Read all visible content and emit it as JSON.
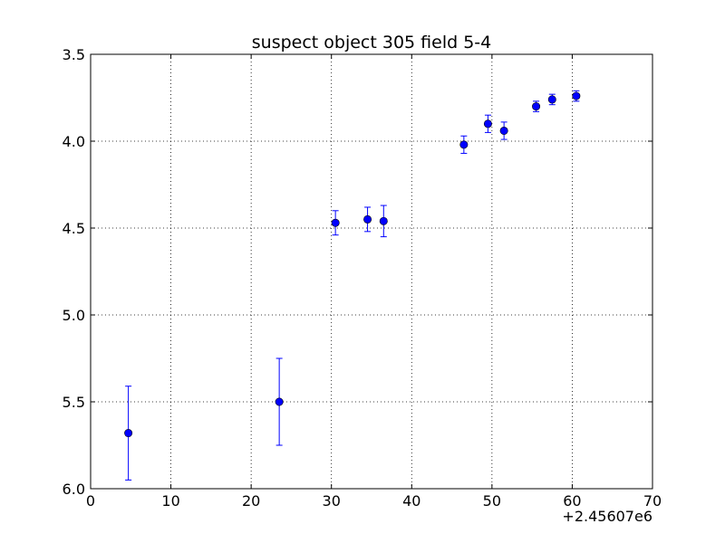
{
  "chart_data": {
    "type": "scatter",
    "title": "suspect object 305 field 5-4",
    "xlabel": "",
    "ylabel": "",
    "x_offset_label": "+2.45607e6",
    "xlim": [
      0,
      70
    ],
    "ylim": [
      3.5,
      6.0
    ],
    "y_inverted": true,
    "grid": true,
    "x_ticks": [
      0,
      10,
      20,
      30,
      40,
      50,
      60,
      70
    ],
    "x_tick_labels": [
      "0",
      "10",
      "20",
      "30",
      "40",
      "50",
      "60",
      "70"
    ],
    "y_ticks": [
      3.5,
      4.0,
      4.5,
      5.0,
      5.5,
      6.0
    ],
    "y_tick_labels": [
      "3.5",
      "4.0",
      "4.5",
      "5.0",
      "5.5",
      "6.0"
    ],
    "marker_color": "#0000ff",
    "series": [
      {
        "points": [
          {
            "x": 4.7,
            "y": 5.68,
            "err": 0.27
          },
          {
            "x": 23.5,
            "y": 5.5,
            "err": 0.25
          },
          {
            "x": 30.5,
            "y": 4.47,
            "err": 0.07
          },
          {
            "x": 34.5,
            "y": 4.45,
            "err": 0.07
          },
          {
            "x": 36.5,
            "y": 4.46,
            "err": 0.09
          },
          {
            "x": 46.5,
            "y": 4.02,
            "err": 0.05
          },
          {
            "x": 49.5,
            "y": 3.9,
            "err": 0.05
          },
          {
            "x": 51.5,
            "y": 3.94,
            "err": 0.05
          },
          {
            "x": 55.5,
            "y": 3.8,
            "err": 0.03
          },
          {
            "x": 57.5,
            "y": 3.76,
            "err": 0.03
          },
          {
            "x": 60.5,
            "y": 3.74,
            "err": 0.03
          }
        ]
      }
    ]
  }
}
